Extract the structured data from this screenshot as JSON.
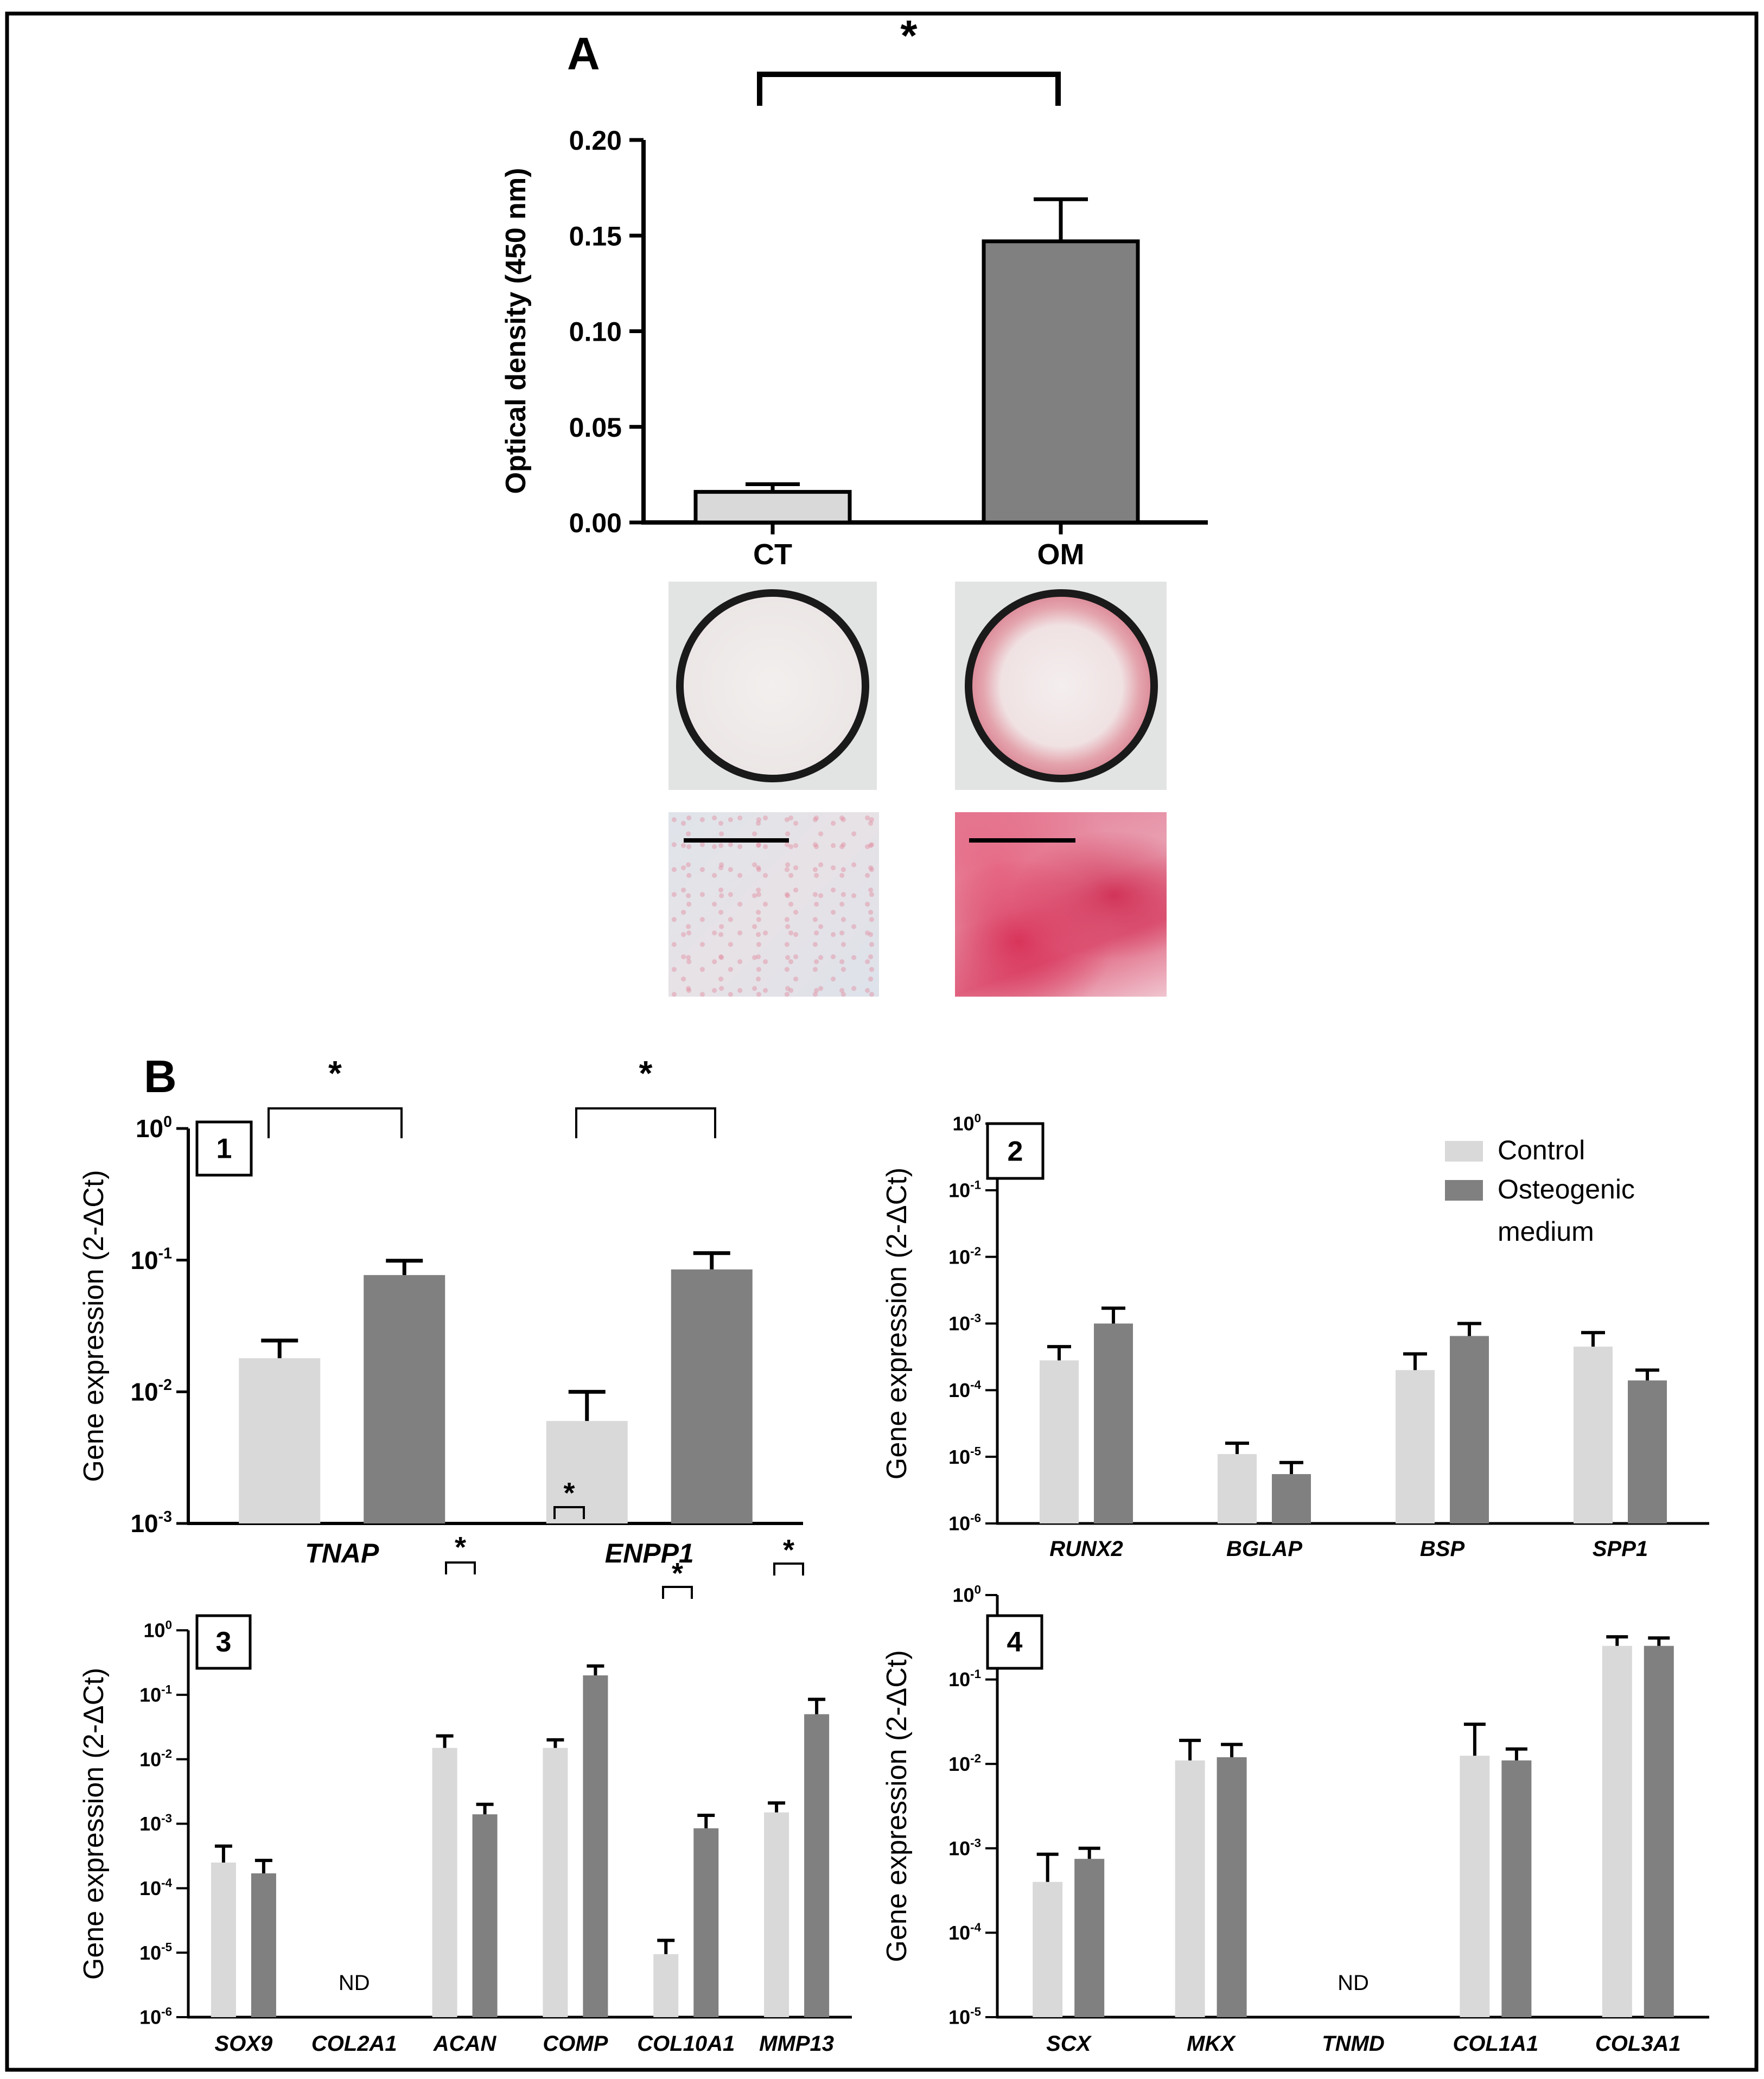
{
  "colors": {
    "control": "#d9d9d9",
    "osteogenic": "#808080",
    "frame": "#000000",
    "stain": "#d8304f"
  },
  "chart_data": [
    {
      "id": "A",
      "type": "bar",
      "panel_label": "A",
      "categories": [
        "CT",
        "OM"
      ],
      "values": [
        0.016,
        0.147
      ],
      "errors": [
        0.004,
        0.022
      ],
      "colors": [
        "#d9d9d9",
        "#808080"
      ],
      "ylabel": "Optical density (450 nm)",
      "ylim": [
        0,
        0.2
      ],
      "yticks": [
        0.0,
        0.05,
        0.1,
        0.15,
        0.2
      ],
      "ytick_labels": [
        "0.00",
        "0.05",
        "0.10",
        "0.15",
        "0.20"
      ],
      "significance": [
        {
          "from": "CT",
          "to": "OM",
          "label": "*"
        }
      ]
    },
    {
      "id": "B1",
      "type": "bar",
      "panel_label": "B",
      "box_label": "1",
      "yscale": "log",
      "categories": [
        "TNAP",
        "ENPP1"
      ],
      "series": [
        {
          "name": "Control",
          "values": [
            0.018,
            0.006
          ],
          "errors": [
            0.0065,
            0.004
          ]
        },
        {
          "name": "Osteogenic medium",
          "values": [
            0.077,
            0.085
          ],
          "errors": [
            0.022,
            0.028
          ]
        }
      ],
      "ylabel": "Gene expression (2-ΔCt)",
      "ylim": [
        0.001,
        1
      ],
      "yticks": [
        {
          "base": "10",
          "exp": "0"
        },
        {
          "base": "10",
          "exp": "-1"
        },
        {
          "base": "10",
          "exp": "-2"
        },
        {
          "base": "10",
          "exp": "-3"
        }
      ],
      "significance": [
        {
          "category": "TNAP",
          "label": "*"
        },
        {
          "category": "ENPP1",
          "label": "*"
        }
      ]
    },
    {
      "id": "B2",
      "type": "bar",
      "box_label": "2",
      "yscale": "log",
      "categories": [
        "RUNX2",
        "BGLAP",
        "BSP",
        "SPP1"
      ],
      "series": [
        {
          "name": "Control",
          "values": [
            0.00028,
            1.1e-05,
            0.0002,
            0.00045
          ],
          "errors": [
            0.00017,
            5e-06,
            0.00015,
            0.00028
          ]
        },
        {
          "name": "Osteogenic medium",
          "values": [
            0.001,
            5.5e-06,
            0.00065,
            0.00014
          ],
          "errors": [
            0.0007,
            2.7e-06,
            0.00035,
            6e-05
          ]
        }
      ],
      "ylabel": "Gene expression (2-ΔCt)",
      "ylim": [
        1e-06,
        1
      ],
      "yticks": [
        {
          "base": "10",
          "exp": "0"
        },
        {
          "base": "10",
          "exp": "-1"
        },
        {
          "base": "10",
          "exp": "-2"
        },
        {
          "base": "10",
          "exp": "-3"
        },
        {
          "base": "10",
          "exp": "-4"
        },
        {
          "base": "10",
          "exp": "-5"
        },
        {
          "base": "10",
          "exp": "-6"
        }
      ],
      "legend": {
        "position": "top-right",
        "entries": [
          {
            "lines": [
              "Control"
            ],
            "color": "#d9d9d9"
          },
          {
            "lines": [
              "Osteogenic",
              "medium"
            ],
            "color": "#808080"
          }
        ]
      }
    },
    {
      "id": "B3",
      "type": "bar",
      "box_label": "3",
      "yscale": "log",
      "categories": [
        "SOX9",
        "COL2A1",
        "ACAN",
        "COMP",
        "COL10A1",
        "MMP13"
      ],
      "series": [
        {
          "name": "Control",
          "values": [
            0.00025,
            null,
            0.015,
            0.015,
            9.5e-06,
            0.0015
          ],
          "errors": [
            0.0002,
            null,
            0.008,
            0.005,
            6e-06,
            0.0006
          ]
        },
        {
          "name": "Osteogenic medium",
          "values": [
            0.00017,
            null,
            0.0014,
            0.2,
            0.00085,
            0.05
          ],
          "errors": [
            0.0001,
            null,
            0.0006,
            0.08,
            0.0005,
            0.035
          ]
        }
      ],
      "not_detected": [
        {
          "category": "COL2A1",
          "label": "ND"
        }
      ],
      "ylabel": "Gene expression (2-ΔCt)",
      "ylim": [
        1e-06,
        1
      ],
      "yticks": [
        {
          "base": "10",
          "exp": "0"
        },
        {
          "base": "10",
          "exp": "-1"
        },
        {
          "base": "10",
          "exp": "-2"
        },
        {
          "base": "10",
          "exp": "-3"
        },
        {
          "base": "10",
          "exp": "-4"
        },
        {
          "base": "10",
          "exp": "-5"
        },
        {
          "base": "10",
          "exp": "-6"
        }
      ],
      "significance": [
        {
          "category": "ACAN",
          "label": "*"
        },
        {
          "category": "COMP",
          "label": "*"
        },
        {
          "category": "COL10A1",
          "label": "*"
        },
        {
          "category": "MMP13",
          "label": "*"
        }
      ]
    },
    {
      "id": "B4",
      "type": "bar",
      "box_label": "4",
      "yscale": "log",
      "categories": [
        "SCX",
        "MKX",
        "TNMD",
        "COL1A1",
        "COL3A1"
      ],
      "series": [
        {
          "name": "Control",
          "values": [
            0.0004,
            0.011,
            null,
            0.0125,
            0.25
          ],
          "errors": [
            0.00045,
            0.008,
            null,
            0.017,
            0.07
          ]
        },
        {
          "name": "Osteogenic medium",
          "values": [
            0.00075,
            0.012,
            null,
            0.011,
            0.25
          ],
          "errors": [
            0.00025,
            0.005,
            null,
            0.004,
            0.06
          ]
        }
      ],
      "not_detected": [
        {
          "category": "TNMD",
          "label": "ND"
        }
      ],
      "ylabel": "Gene expression (2-ΔCt)",
      "ylim": [
        1e-05,
        1
      ],
      "yticks": [
        {
          "base": "10",
          "exp": "0"
        },
        {
          "base": "10",
          "exp": "-1"
        },
        {
          "base": "10",
          "exp": "-2"
        },
        {
          "base": "10",
          "exp": "-3"
        },
        {
          "base": "10",
          "exp": "-4"
        },
        {
          "base": "10",
          "exp": "-5"
        }
      ]
    }
  ]
}
